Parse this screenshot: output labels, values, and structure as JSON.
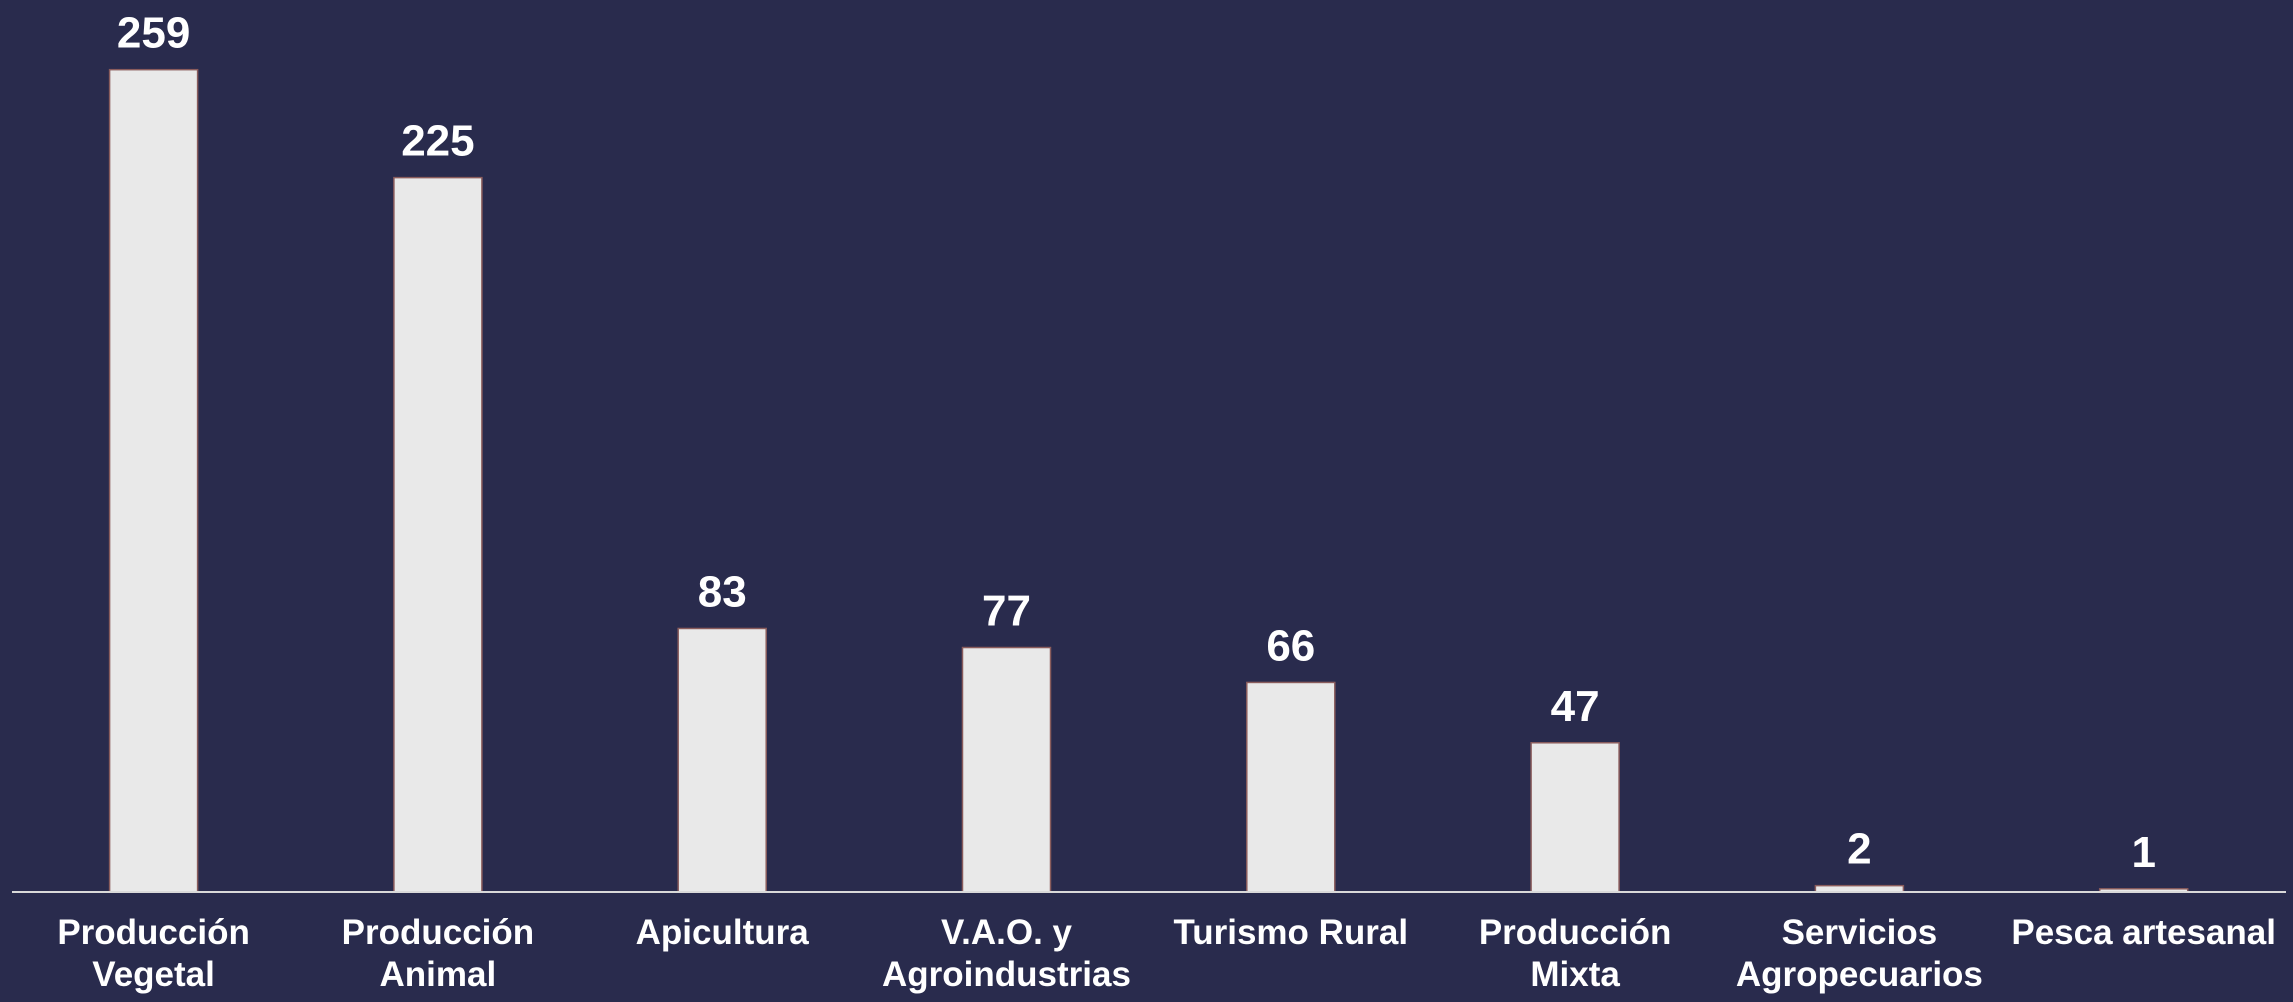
{
  "chart_data": {
    "type": "bar",
    "categories": [
      "Producción\nVegetal",
      "Producción\nAnimal",
      "Apicultura",
      "V.A.O. y\nAgroindustrias",
      "Turismo Rural",
      "Producción\nMixta",
      "Servicios\nAgropecuarios",
      "Pesca artesanal"
    ],
    "values": [
      259,
      225,
      83,
      77,
      66,
      47,
      2,
      1
    ],
    "color": "#e9e9e9",
    "ylim": [
      0,
      280
    ]
  }
}
